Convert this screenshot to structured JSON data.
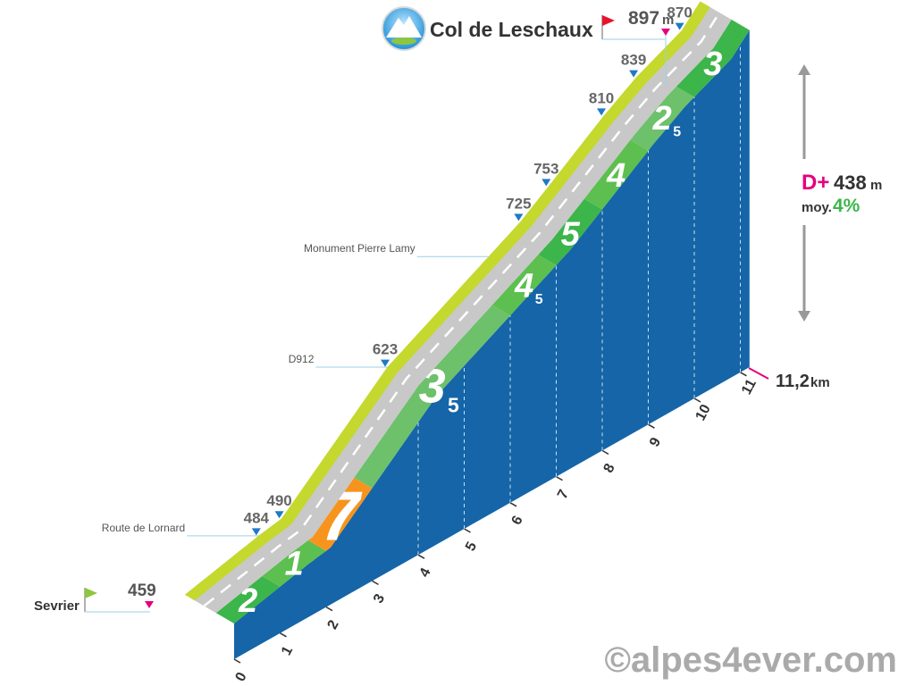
{
  "chart_data": {
    "type": "area",
    "title": "Col de Leschaux",
    "summit_altitude": "897",
    "summit_unit": "m",
    "start_name": "Sevrier",
    "start_altitude": "459",
    "distance_label": "11,2",
    "distance_unit": "km",
    "elevation_gain_prefix": "D+",
    "elevation_gain": "438",
    "elevation_gain_unit": "m",
    "average_prefix": "moy.",
    "average_gradient": "4%",
    "km_ticks": [
      "0",
      "1",
      "2",
      "3",
      "4",
      "5",
      "6",
      "7",
      "8",
      "9",
      "10",
      "11"
    ],
    "profile": [
      {
        "km": 0,
        "alt": 459
      },
      {
        "km": 1.6,
        "alt": 484
      },
      {
        "km": 2.1,
        "alt": 490
      },
      {
        "km": 4.4,
        "alt": 623
      },
      {
        "km": 7.3,
        "alt": 725
      },
      {
        "km": 7.9,
        "alt": 753
      },
      {
        "km": 9.1,
        "alt": 810
      },
      {
        "km": 9.8,
        "alt": 839
      },
      {
        "km": 10.8,
        "alt": 870
      },
      {
        "km": 11.2,
        "alt": 897
      }
    ],
    "altitude_markers": [
      {
        "km": 1.6,
        "label": "484"
      },
      {
        "km": 2.1,
        "label": "490"
      },
      {
        "km": 4.4,
        "label": "623"
      },
      {
        "km": 7.3,
        "label": "725"
      },
      {
        "km": 7.9,
        "label": "753"
      },
      {
        "km": 9.1,
        "label": "810"
      },
      {
        "km": 9.8,
        "label": "839"
      },
      {
        "km": 10.8,
        "label": "870"
      }
    ],
    "segments": [
      {
        "from": 0,
        "to": 1,
        "gradient": "2",
        "gradient_sub": "",
        "color": "#3cb54a"
      },
      {
        "from": 1,
        "to": 2,
        "gradient": "1",
        "gradient_sub": "",
        "color": "#5cbf4f"
      },
      {
        "from": 2,
        "to": 3,
        "gradient": "7",
        "gradient_sub": "",
        "color": "#f7941d"
      },
      {
        "from": 3,
        "to": 6,
        "gradient": "3",
        "gradient_sub": "5",
        "color": "#6cc16a"
      },
      {
        "from": 6,
        "to": 7,
        "gradient": "4",
        "gradient_sub": "5",
        "color": "#5cbf4f"
      },
      {
        "from": 7,
        "to": 8,
        "gradient": "5",
        "gradient_sub": "",
        "color": "#3cb54a"
      },
      {
        "from": 8,
        "to": 9,
        "gradient": "4",
        "gradient_sub": "",
        "color": "#5cbf4f"
      },
      {
        "from": 9,
        "to": 10,
        "gradient": "2",
        "gradient_sub": "5",
        "color": "#6cc16a"
      },
      {
        "from": 10,
        "to": 11.2,
        "gradient": "3",
        "gradient_sub": "",
        "color": "#3cb54a"
      }
    ],
    "annotations": [
      {
        "km": 1.6,
        "label": "Route de Lornard"
      },
      {
        "km": 4.4,
        "label": "D912"
      },
      {
        "km": 6.6,
        "label": "Monument Pierre Lamy"
      }
    ],
    "colors": {
      "road": "#c8c8c8",
      "road_edge": "#c4d82e",
      "side": "#1565a8",
      "summit_flag": "#e8132b",
      "start_flag": "#8dc63f",
      "marker_blue": "#1f78c8",
      "marker_pink": "#e6007e",
      "gain_pink": "#e6007e",
      "avg_green": "#3cb54a",
      "text_grey": "#666666",
      "text_dark": "#333333"
    }
  },
  "watermark": "©alpes4ever.com"
}
